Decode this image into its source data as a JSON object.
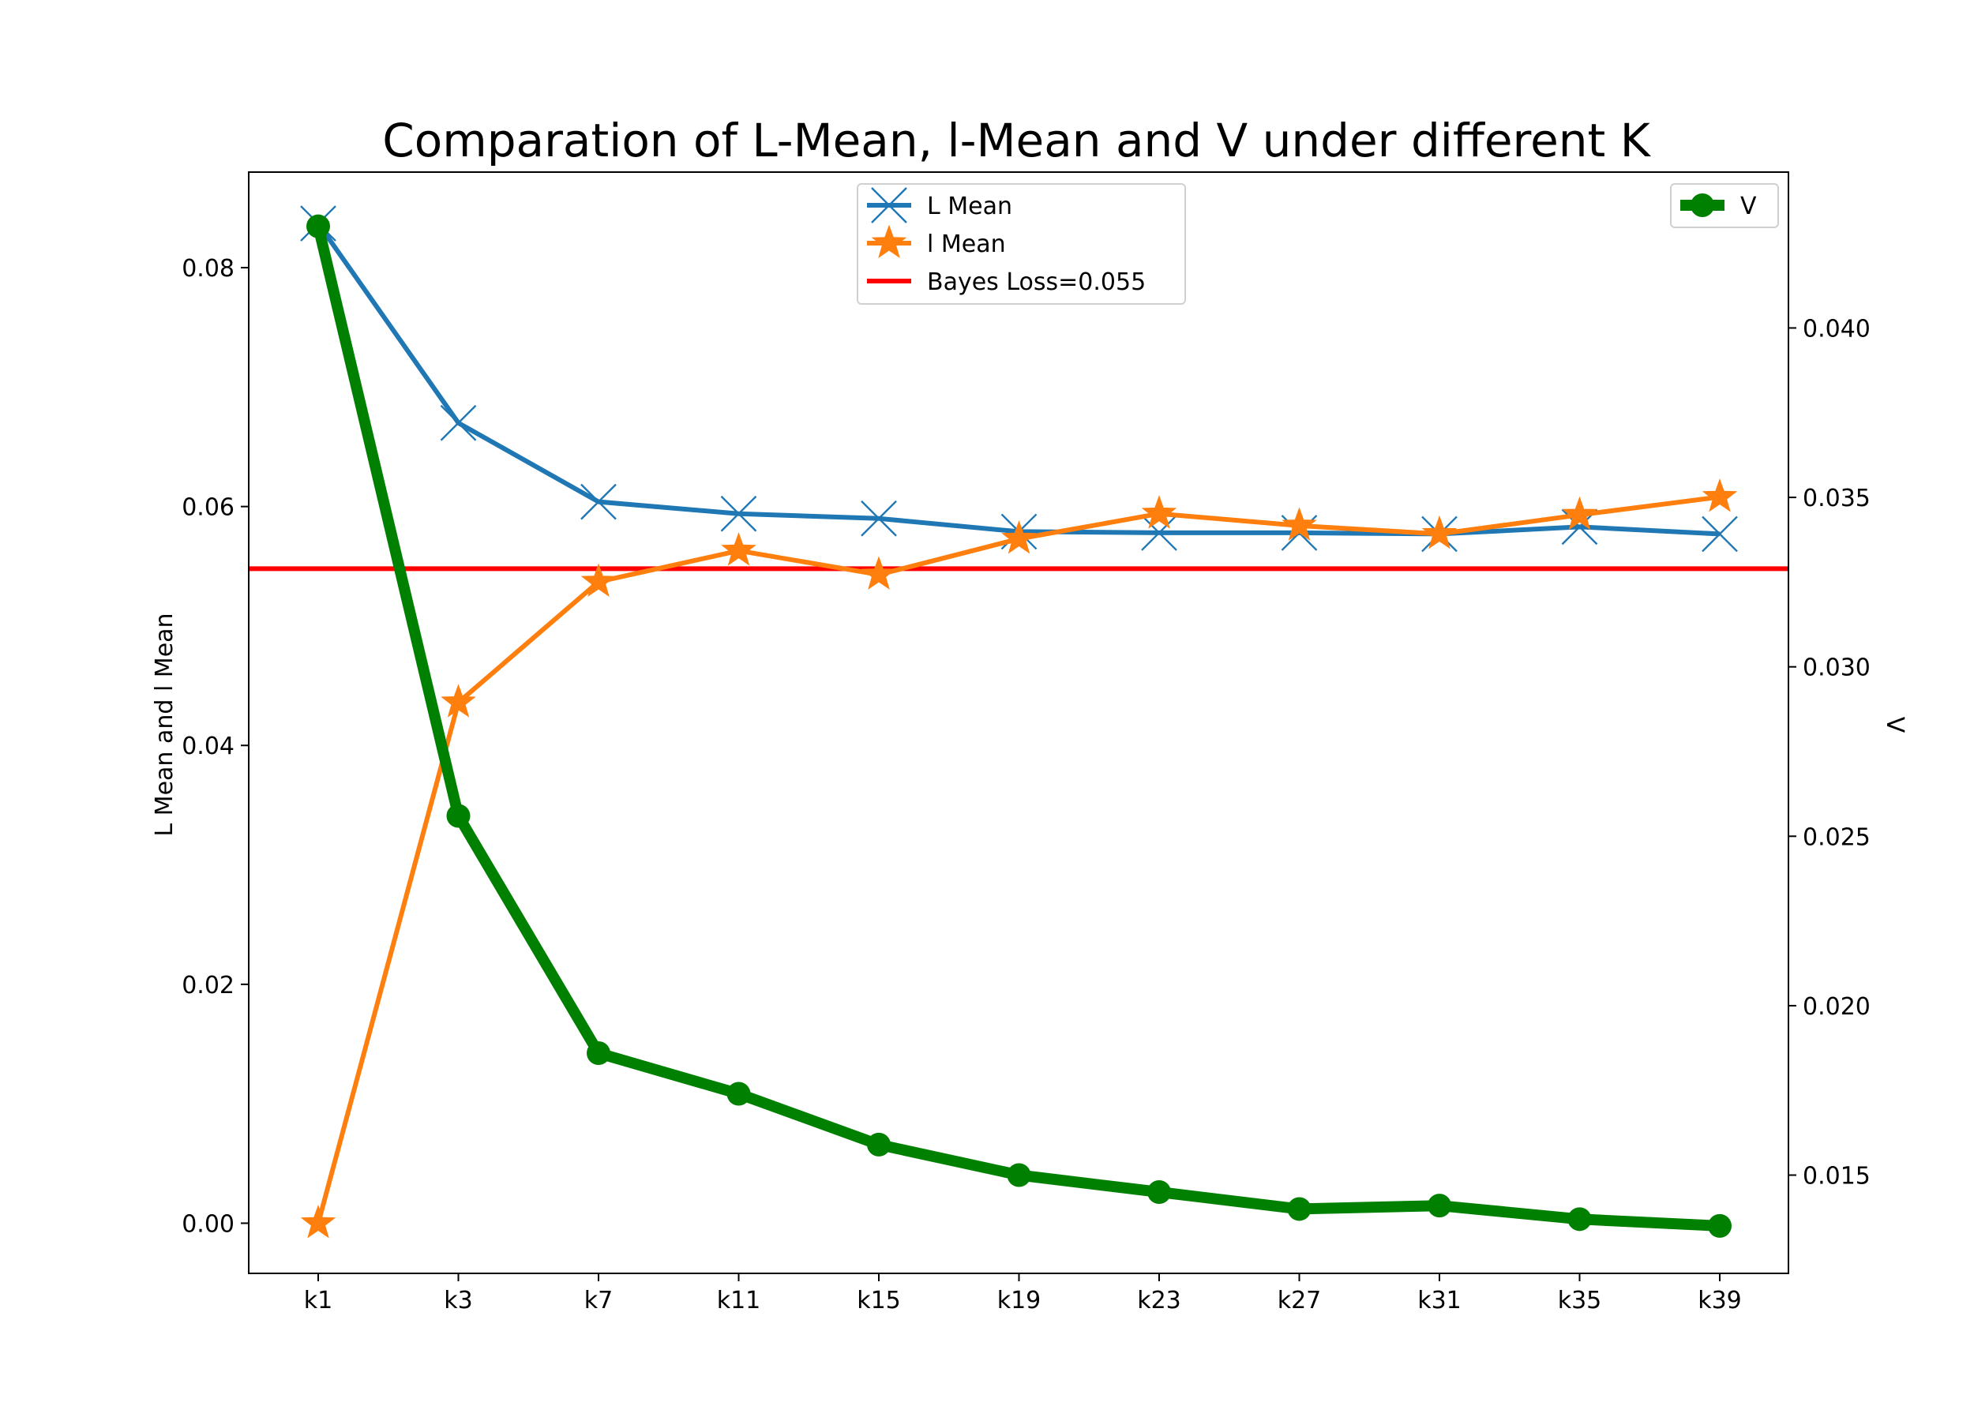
{
  "chart_data": {
    "type": "line",
    "title": "Comparation of L-Mean, l-Mean and V under different K",
    "xlabel": "",
    "ylabel": "L Mean and l Mean",
    "y2label": "V",
    "categories": [
      "k1",
      "k3",
      "k7",
      "k11",
      "k15",
      "k19",
      "k23",
      "k27",
      "k31",
      "k35",
      "k39"
    ],
    "ylim": [
      -0.0042,
      0.088
    ],
    "y2lim": [
      0.0121,
      0.0446
    ],
    "yticks": [
      "0.00",
      "0.02",
      "0.04",
      "0.06",
      "0.08"
    ],
    "y2ticks": [
      "0.015",
      "0.020",
      "0.025",
      "0.030",
      "0.035",
      "0.040"
    ],
    "grid": false,
    "series": [
      {
        "name": "L Mean",
        "axis": "left",
        "color": "#1f77b4",
        "marker": "x",
        "values": [
          0.0837,
          0.067,
          0.0604,
          0.0594,
          0.059,
          0.0579,
          0.0578,
          0.0578,
          0.0577,
          0.0583,
          0.0577
        ]
      },
      {
        "name": "l Mean",
        "axis": "left",
        "color": "#ff7f0e",
        "marker": "star",
        "values": [
          0.0,
          0.0436,
          0.0537,
          0.0563,
          0.0543,
          0.0573,
          0.0594,
          0.0584,
          0.0577,
          0.0593,
          0.0608
        ]
      },
      {
        "name": "V",
        "axis": "right",
        "color": "#008000",
        "marker": "circle",
        "values": [
          0.043,
          0.0256,
          0.0186,
          0.0174,
          0.0159,
          0.015,
          0.0145,
          0.014,
          0.0141,
          0.0137,
          0.0135
        ]
      }
    ],
    "hline": {
      "name": "Bayes Loss=0.055",
      "axis": "left",
      "value": 0.0548,
      "color": "#ff0000"
    },
    "legends": [
      {
        "placement": "upper-center",
        "entries": [
          "L Mean",
          "l Mean",
          "Bayes Loss=0.055"
        ]
      },
      {
        "placement": "upper-right",
        "entries": [
          "V"
        ]
      }
    ]
  }
}
